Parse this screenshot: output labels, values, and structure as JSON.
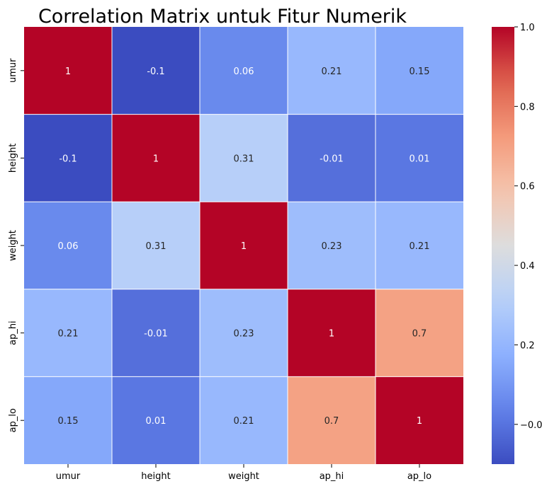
{
  "chart_data": {
    "type": "heatmap",
    "title": "Correlation Matrix untuk Fitur Numerik",
    "xlabel": "",
    "ylabel": "",
    "x_categories": [
      "umur",
      "height",
      "weight",
      "ap_hi",
      "ap_lo"
    ],
    "y_categories": [
      "umur",
      "height",
      "weight",
      "ap_hi",
      "ap_lo"
    ],
    "values": [
      [
        1,
        -0.1,
        0.06,
        0.21,
        0.15
      ],
      [
        -0.1,
        1,
        0.31,
        -0.01,
        0.01
      ],
      [
        0.06,
        0.31,
        1,
        0.23,
        0.21
      ],
      [
        0.21,
        -0.01,
        0.23,
        1,
        0.7
      ],
      [
        0.15,
        0.01,
        0.21,
        0.7,
        1
      ]
    ],
    "annotations": [
      [
        "1",
        "-0.1",
        "0.06",
        "0.21",
        "0.15"
      ],
      [
        "-0.1",
        "1",
        "0.31",
        "-0.01",
        "0.01"
      ],
      [
        "0.06",
        "0.31",
        "1",
        "0.23",
        "0.21"
      ],
      [
        "0.21",
        "-0.01",
        "0.23",
        "1",
        "0.7"
      ],
      [
        "0.15",
        "0.01",
        "0.21",
        "0.7",
        "1"
      ]
    ],
    "colormap": "coolwarm",
    "vmin": -0.1,
    "vmax": 1.0,
    "colorbar_ticks": [
      -0.0,
      0.2,
      0.4,
      0.6,
      0.8,
      1.0
    ],
    "colorbar_tick_labels": [
      "−0.0",
      "0.2",
      "0.4",
      "0.6",
      "0.8",
      "1.0"
    ],
    "grid": "white lines between cells"
  }
}
